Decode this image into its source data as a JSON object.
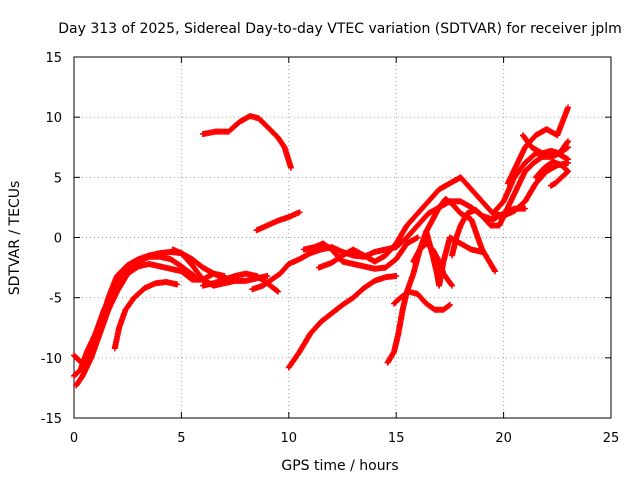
{
  "chart_data": {
    "type": "scatter",
    "title": "Day 313 of 2025, Sidereal Day-to-day VTEC variation (SDTVAR) for receiver jplm",
    "xlabel": "GPS time / hours",
    "ylabel": "SDTVAR / TECUs",
    "xlim": [
      0,
      25
    ],
    "ylim": [
      -15,
      15
    ],
    "xticks": [
      0,
      5,
      10,
      15,
      20,
      25
    ],
    "yticks": [
      -15,
      -10,
      -5,
      0,
      5,
      10,
      15
    ],
    "grid": true,
    "marker": "+",
    "color": "#ff0000",
    "series": [
      {
        "points": [
          [
            0.0,
            -11.5
          ],
          [
            0.3,
            -11.0
          ],
          [
            0.6,
            -9.5
          ],
          [
            1.0,
            -8.0
          ],
          [
            1.4,
            -6.0
          ],
          [
            1.8,
            -4.5
          ],
          [
            2.2,
            -3.0
          ],
          [
            2.6,
            -2.5
          ],
          [
            3.0,
            -2.0
          ],
          [
            3.5,
            -1.6
          ],
          [
            4.0,
            -1.6
          ],
          [
            4.5,
            -1.8
          ],
          [
            5.0,
            -2.4
          ],
          [
            5.3,
            -2.8
          ],
          [
            5.6,
            -3.2
          ]
        ]
      },
      {
        "points": [
          [
            0.1,
            -12.3
          ],
          [
            0.4,
            -11.5
          ],
          [
            0.8,
            -10.0
          ],
          [
            1.2,
            -8.0
          ],
          [
            1.6,
            -6.0
          ],
          [
            2.0,
            -4.5
          ],
          [
            2.5,
            -3.0
          ],
          [
            3.0,
            -2.4
          ],
          [
            3.5,
            -2.2
          ],
          [
            4.0,
            -2.4
          ],
          [
            4.5,
            -2.6
          ],
          [
            5.0,
            -2.8
          ],
          [
            5.5,
            -3.5
          ],
          [
            6.0,
            -3.5
          ],
          [
            6.5,
            -3.0
          ],
          [
            7.0,
            -3.4
          ]
        ]
      },
      {
        "points": [
          [
            0.0,
            -9.8
          ],
          [
            0.4,
            -10.5
          ],
          [
            0.8,
            -9.5
          ],
          [
            1.2,
            -7.5
          ],
          [
            1.6,
            -5.0
          ],
          [
            2.0,
            -3.2
          ],
          [
            2.5,
            -2.3
          ],
          [
            3.0,
            -1.8
          ],
          [
            3.5,
            -1.5
          ],
          [
            4.0,
            -1.3
          ],
          [
            4.5,
            -1.2
          ],
          [
            5.0,
            -1.3
          ],
          [
            5.5,
            -1.8
          ],
          [
            6.0,
            -2.5
          ],
          [
            6.5,
            -3.0
          ],
          [
            7.0,
            -3.2
          ]
        ]
      },
      {
        "points": [
          [
            1.9,
            -9.2
          ],
          [
            2.1,
            -7.5
          ],
          [
            2.4,
            -6.0
          ],
          [
            2.8,
            -5.0
          ],
          [
            3.3,
            -4.2
          ],
          [
            3.8,
            -3.8
          ],
          [
            4.3,
            -3.7
          ],
          [
            4.8,
            -3.9
          ]
        ]
      },
      {
        "points": [
          [
            4.6,
            -1.0
          ],
          [
            5.0,
            -1.3
          ],
          [
            5.5,
            -2.3
          ],
          [
            6.0,
            -3.5
          ],
          [
            6.5,
            -4.0
          ],
          [
            7.0,
            -3.8
          ],
          [
            7.5,
            -3.6
          ],
          [
            8.0,
            -3.6
          ],
          [
            8.5,
            -3.4
          ],
          [
            9.0,
            -3.2
          ]
        ]
      },
      {
        "points": [
          [
            6.0,
            -4.0
          ],
          [
            6.5,
            -3.8
          ],
          [
            7.0,
            -3.5
          ],
          [
            7.5,
            -3.2
          ],
          [
            8.0,
            -3.0
          ],
          [
            8.5,
            -3.2
          ],
          [
            9.0,
            -3.8
          ],
          [
            9.5,
            -4.5
          ]
        ]
      },
      {
        "points": [
          [
            6.0,
            8.6
          ],
          [
            6.6,
            8.8
          ],
          [
            7.2,
            8.8
          ],
          [
            7.7,
            9.6
          ],
          [
            8.2,
            10.1
          ],
          [
            8.6,
            9.9
          ],
          [
            9.0,
            9.2
          ],
          [
            9.5,
            8.3
          ],
          [
            9.8,
            7.5
          ],
          [
            10.1,
            5.8
          ]
        ]
      },
      {
        "points": [
          [
            8.5,
            0.6
          ],
          [
            9.0,
            1.0
          ],
          [
            9.5,
            1.4
          ],
          [
            10.0,
            1.7
          ],
          [
            10.5,
            2.1
          ]
        ]
      },
      {
        "points": [
          [
            8.3,
            -4.3
          ],
          [
            8.8,
            -4.0
          ],
          [
            9.2,
            -3.5
          ],
          [
            9.6,
            -3.0
          ],
          [
            10.0,
            -2.2
          ],
          [
            10.5,
            -1.8
          ],
          [
            11.0,
            -1.3
          ],
          [
            11.5,
            -1.0
          ],
          [
            12.0,
            -0.8
          ],
          [
            12.5,
            -1.2
          ],
          [
            13.0,
            -1.5
          ],
          [
            13.5,
            -1.6
          ],
          [
            14.0,
            -1.2
          ],
          [
            14.5,
            -1.0
          ],
          [
            15.0,
            -0.8
          ],
          [
            15.5,
            0.0
          ],
          [
            16.0,
            1.0
          ],
          [
            16.5,
            2.0
          ],
          [
            17.0,
            2.5
          ],
          [
            17.5,
            3.0
          ],
          [
            18.0,
            3.0
          ],
          [
            18.5,
            2.5
          ],
          [
            19.0,
            1.8
          ],
          [
            19.5,
            1.5
          ],
          [
            20.0,
            2.0
          ],
          [
            20.5,
            2.4
          ],
          [
            21.0,
            2.4
          ]
        ]
      },
      {
        "points": [
          [
            11.4,
            -2.5
          ],
          [
            12.0,
            -2.1
          ],
          [
            12.5,
            -1.5
          ],
          [
            13.0,
            -1.0
          ],
          [
            13.5,
            -1.5
          ],
          [
            14.0,
            -2.0
          ],
          [
            14.5,
            -1.5
          ],
          [
            15.0,
            -0.5
          ],
          [
            15.5,
            1.0
          ],
          [
            16.0,
            2.0
          ],
          [
            16.5,
            3.0
          ],
          [
            17.0,
            4.0
          ],
          [
            17.5,
            4.5
          ],
          [
            18.0,
            5.0
          ],
          [
            18.5,
            4.0
          ],
          [
            19.0,
            3.0
          ],
          [
            19.5,
            2.0
          ],
          [
            20.0,
            1.8
          ],
          [
            20.5,
            2.2
          ],
          [
            21.0,
            3.0
          ]
        ]
      },
      {
        "points": [
          [
            10.7,
            -1.0
          ],
          [
            11.2,
            -0.8
          ],
          [
            11.6,
            -0.5
          ],
          [
            12.0,
            -1.0
          ],
          [
            12.5,
            -2.0
          ],
          [
            13.0,
            -2.2
          ],
          [
            13.5,
            -2.4
          ],
          [
            14.0,
            -2.6
          ],
          [
            14.5,
            -2.5
          ],
          [
            15.0,
            -1.8
          ],
          [
            15.5,
            -0.5
          ],
          [
            16.0,
            0.0
          ]
        ]
      },
      {
        "points": [
          [
            10.0,
            -10.8
          ],
          [
            10.5,
            -9.5
          ],
          [
            11.0,
            -8.0
          ],
          [
            11.5,
            -7.0
          ],
          [
            12.0,
            -6.3
          ],
          [
            12.5,
            -5.6
          ],
          [
            13.0,
            -5.0
          ],
          [
            13.5,
            -4.2
          ],
          [
            14.0,
            -3.6
          ],
          [
            14.5,
            -3.3
          ],
          [
            15.0,
            -3.2
          ]
        ]
      },
      {
        "points": [
          [
            14.6,
            -10.4
          ],
          [
            14.9,
            -9.5
          ],
          [
            15.1,
            -8.0
          ],
          [
            15.3,
            -6.0
          ],
          [
            15.5,
            -4.5
          ],
          [
            15.8,
            -3.0
          ],
          [
            16.1,
            -1.0
          ],
          [
            16.4,
            0.5
          ],
          [
            16.7,
            1.5
          ],
          [
            17.0,
            2.5
          ],
          [
            17.3,
            3.2
          ],
          [
            17.6,
            2.8
          ],
          [
            18.0,
            2.0
          ],
          [
            18.5,
            1.5
          ],
          [
            19.0,
            -1.0
          ],
          [
            19.6,
            -2.8
          ]
        ]
      },
      {
        "points": [
          [
            14.9,
            -5.5
          ],
          [
            15.2,
            -5.0
          ],
          [
            15.6,
            -4.5
          ],
          [
            16.0,
            -4.7
          ],
          [
            16.4,
            -5.5
          ],
          [
            16.8,
            -6.0
          ],
          [
            17.2,
            -6.0
          ],
          [
            17.5,
            -5.6
          ]
        ]
      },
      {
        "points": [
          [
            15.8,
            -2.0
          ],
          [
            16.1,
            -1.0
          ],
          [
            16.4,
            -0.5
          ],
          [
            16.7,
            -1.0
          ],
          [
            17.0,
            -2.0
          ],
          [
            17.2,
            -3.0
          ],
          [
            17.4,
            -3.5
          ],
          [
            17.6,
            -4.0
          ]
        ]
      },
      {
        "points": [
          [
            16.4,
            0.5
          ],
          [
            16.7,
            -1.5
          ],
          [
            16.9,
            -3.0
          ],
          [
            17.0,
            -4.0
          ],
          [
            17.2,
            -2.0
          ],
          [
            17.5,
            0.0
          ],
          [
            18.0,
            -0.5
          ],
          [
            18.5,
            -1.0
          ],
          [
            19.0,
            -1.2
          ]
        ]
      },
      {
        "points": [
          [
            17.6,
            -1.5
          ],
          [
            17.8,
            0.0
          ],
          [
            18.0,
            1.0
          ],
          [
            18.3,
            2.0
          ],
          [
            18.7,
            2.3
          ],
          [
            19.0,
            1.8
          ],
          [
            19.4,
            1.0
          ],
          [
            19.8,
            1.0
          ],
          [
            20.2,
            2.5
          ],
          [
            20.6,
            4.0
          ],
          [
            21.0,
            5.5
          ],
          [
            21.4,
            6.2
          ],
          [
            21.8,
            6.7
          ],
          [
            22.2,
            6.7
          ],
          [
            22.6,
            7.0
          ],
          [
            23.0,
            7.5
          ]
        ]
      },
      {
        "points": [
          [
            19.5,
            2.0
          ],
          [
            20.0,
            3.0
          ],
          [
            20.5,
            5.0
          ],
          [
            21.0,
            6.2
          ],
          [
            21.5,
            7.0
          ],
          [
            22.0,
            6.9
          ],
          [
            22.5,
            7.0
          ],
          [
            23.0,
            6.5
          ]
        ]
      },
      {
        "points": [
          [
            20.2,
            4.5
          ],
          [
            20.6,
            6.0
          ],
          [
            21.0,
            7.5
          ],
          [
            21.5,
            8.5
          ],
          [
            22.0,
            9.0
          ],
          [
            22.5,
            8.5
          ],
          [
            23.0,
            10.8
          ]
        ]
      },
      {
        "points": [
          [
            21.0,
            3.0
          ],
          [
            21.5,
            4.5
          ],
          [
            22.0,
            5.5
          ],
          [
            22.5,
            6.0
          ],
          [
            23.0,
            6.2
          ]
        ]
      },
      {
        "points": [
          [
            20.9,
            8.5
          ],
          [
            21.3,
            7.5
          ],
          [
            21.8,
            7.0
          ],
          [
            22.2,
            7.2
          ],
          [
            22.6,
            7.0
          ],
          [
            23.0,
            8.0
          ]
        ]
      },
      {
        "points": [
          [
            21.5,
            5.0
          ],
          [
            21.9,
            5.8
          ],
          [
            22.3,
            6.3
          ],
          [
            22.7,
            6.0
          ],
          [
            23.0,
            5.5
          ],
          [
            22.7,
            5.0
          ],
          [
            22.4,
            4.5
          ],
          [
            22.2,
            4.3
          ]
        ]
      }
    ]
  }
}
